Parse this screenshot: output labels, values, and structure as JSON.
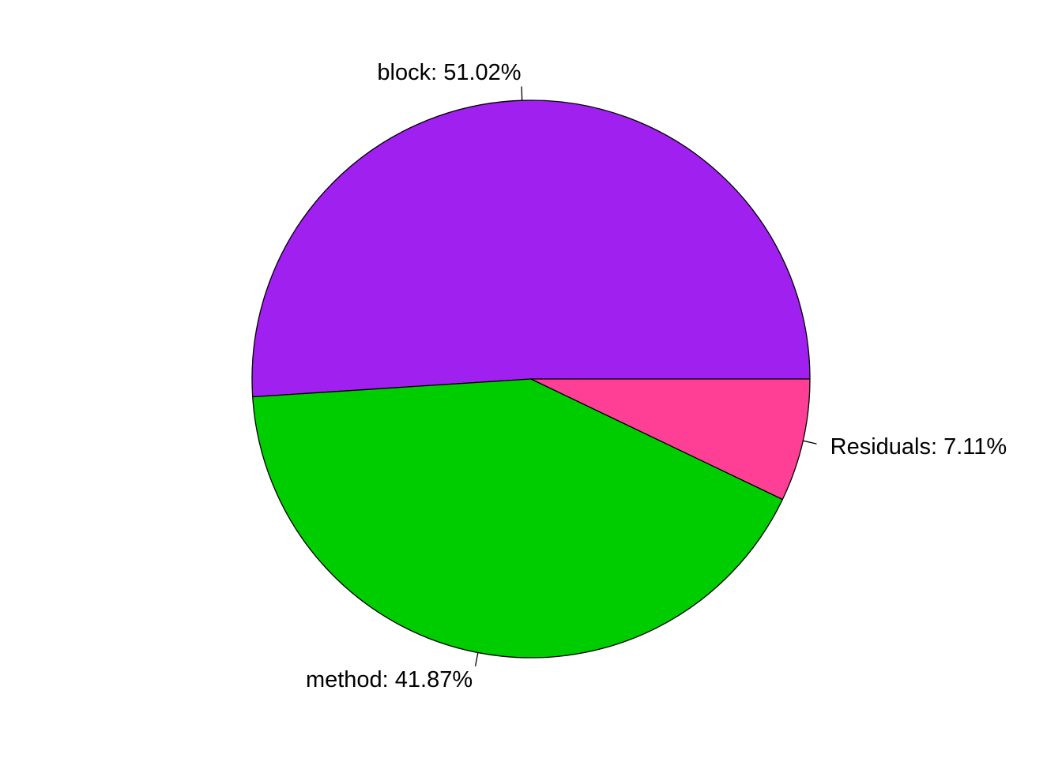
{
  "chart_data": {
    "type": "pie",
    "title": "",
    "start_angle_deg": 0,
    "direction": "counterclockwise",
    "slices": [
      {
        "name": "block",
        "value": 51.02,
        "label": "block: 51.02%",
        "color": "#A020F0"
      },
      {
        "name": "method",
        "value": 41.87,
        "label": "method: 41.87%",
        "color": "#00CD00"
      },
      {
        "name": "Residuals",
        "value": 7.11,
        "label": "Residuals: 7.11%",
        "color": "#FF3E96"
      }
    ]
  }
}
